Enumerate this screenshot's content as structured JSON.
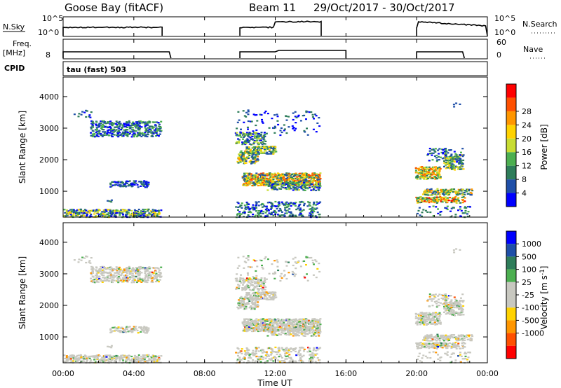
{
  "header": {
    "station": "Goose Bay (fitACF)",
    "beam": "Beam 11",
    "date_range": "29/Oct/2017 - 30/Oct/2017"
  },
  "small_panels": {
    "nsky_label": "N.Sky",
    "nsky_ticks": [
      "10^5",
      "10^0"
    ],
    "nsearch_label": "N.Search",
    "nsearch_ticks": [
      "10^5",
      "10^0"
    ],
    "freq_label_1": "Freq.",
    "freq_label_2": "[MHz]",
    "freq_ticks": [
      "8"
    ],
    "nave_label": "Nave",
    "nave_ticks": [
      "60",
      "0"
    ],
    "cpid_label": "CPID",
    "cpid_text": "tau (fast) 503"
  },
  "colors": {
    "power": [
      "#0000ff",
      "#1f4fa8",
      "#2e7d5a",
      "#4caf50",
      "#c8dc32",
      "#ffd200",
      "#ff9600",
      "#ff5000",
      "#ff0000"
    ],
    "velocity": [
      "#ff0000",
      "#ff5000",
      "#ff9600",
      "#ffd200",
      "#c8c8c0",
      "#c8c8c0",
      "#4caf50",
      "#2e7d5a",
      "#1f4fa8",
      "#0000ff"
    ]
  },
  "chart_data": [
    {
      "type": "heatmap",
      "name": "power",
      "xlabel": "",
      "ylabel": "Slant Range [km]",
      "yticks": [
        "1000",
        "2000",
        "3000",
        "4000"
      ],
      "ylim": [
        180,
        4620
      ],
      "colorbar_label": "Power [dB]",
      "colorbar_ticks": [
        "4",
        "8",
        "12",
        "16",
        "20",
        "24",
        "28"
      ]
    },
    {
      "type": "heatmap",
      "name": "velocity",
      "xlabel": "Time UT",
      "ylabel": "Slant Range [km]",
      "xticks": [
        "00:00",
        "04:00",
        "08:00",
        "12:00",
        "16:00",
        "20:00",
        "00:00"
      ],
      "xlim": [
        0,
        24
      ],
      "yticks": [
        "1000",
        "2000",
        "3000",
        "4000"
      ],
      "ylim": [
        180,
        4620
      ],
      "colorbar_label": "Velocity [m s^-1]",
      "colorbar_ticks": [
        "1000",
        "500",
        "100",
        "25",
        "-25",
        "-100",
        "-500",
        "-1000"
      ]
    }
  ]
}
